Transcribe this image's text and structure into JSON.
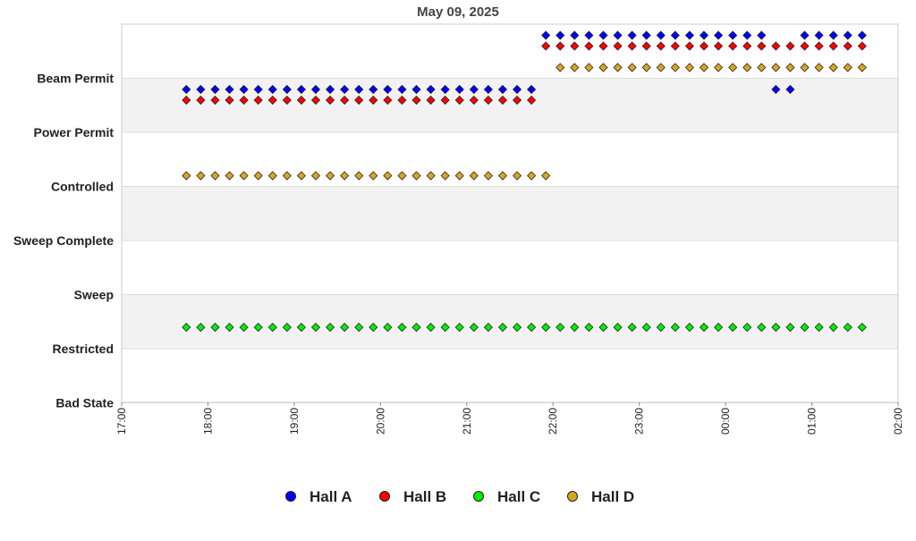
{
  "chart_data": {
    "type": "scatter",
    "title": "May 09, 2025",
    "xlabel": "",
    "ylabel": "",
    "x_tick_labels": [
      "17:00",
      "18:00",
      "19:00",
      "20:00",
      "21:00",
      "22:00",
      "23:00",
      "00:00",
      "01:00",
      "02:00"
    ],
    "xlim": [
      "2025-05-09 17:00",
      "2025-05-10 02:00"
    ],
    "y_categories": [
      "Bad State",
      "Restricted",
      "Sweep",
      "Sweep Complete",
      "Controlled",
      "Power Permit",
      "Beam Permit"
    ],
    "grid": true,
    "legend_position": "bottom",
    "series": [
      {
        "name": "Hall A",
        "color": "#0000ff",
        "points": [
          {
            "from": "2025-05-09 17:45",
            "to": "2025-05-09 21:45",
            "interval_minutes": 10,
            "state": "Power Permit"
          },
          {
            "from": "2025-05-09 21:55",
            "to": "2025-05-10 00:15",
            "interval_minutes": 10,
            "state": "Beam Permit"
          },
          {
            "at": "2025-05-10 00:25",
            "state": "Beam Permit"
          },
          {
            "at": "2025-05-10 00:35",
            "state": "Power Permit"
          },
          {
            "at": "2025-05-10 00:45",
            "state": "Power Permit"
          },
          {
            "at": "2025-05-10 00:55",
            "state": "Beam Permit"
          },
          {
            "from": "2025-05-10 01:05",
            "to": "2025-05-10 01:35",
            "interval_minutes": 10,
            "state": "Beam Permit"
          }
        ]
      },
      {
        "name": "Hall B",
        "color": "#ff0000",
        "points": [
          {
            "from": "2025-05-09 17:45",
            "to": "2025-05-09 21:45",
            "interval_minutes": 10,
            "state": "Power Permit"
          },
          {
            "from": "2025-05-09 21:55",
            "to": "2025-05-10 01:35",
            "interval_minutes": 10,
            "state": "Beam Permit"
          }
        ]
      },
      {
        "name": "Hall C",
        "color": "#00ee00",
        "points": [
          {
            "from": "2025-05-09 17:45",
            "to": "2025-05-10 01:35",
            "interval_minutes": 10,
            "state": "Restricted"
          }
        ]
      },
      {
        "name": "Hall D",
        "color": "#daa520",
        "points": [
          {
            "from": "2025-05-09 17:45",
            "to": "2025-05-09 21:55",
            "interval_minutes": 10,
            "state": "Controlled"
          },
          {
            "from": "2025-05-09 22:05",
            "to": "2025-05-10 01:35",
            "interval_minutes": 10,
            "state": "Beam Permit"
          }
        ]
      }
    ]
  }
}
